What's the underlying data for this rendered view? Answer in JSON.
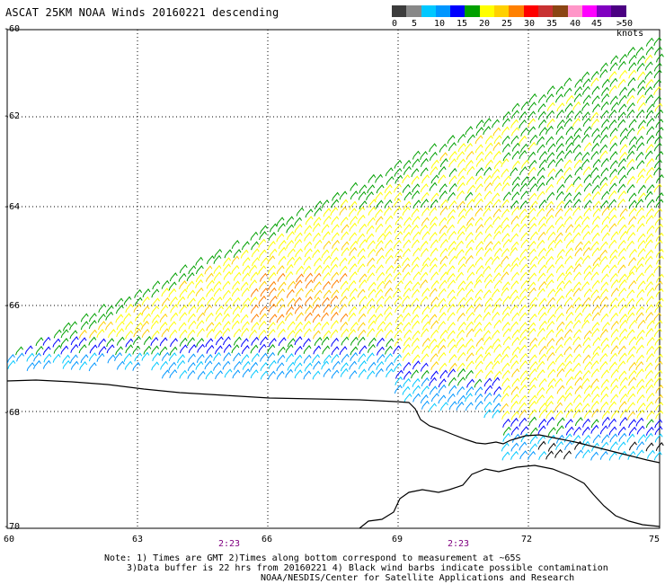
{
  "title": "ASCAT 25KM NOAA Winds 20160221 descending",
  "legend": {
    "colors": [
      "#3c3c3c",
      "#888888",
      "#00c8ff",
      "#0096ff",
      "#0000ff",
      "#00a000",
      "#ffff00",
      "#ffd000",
      "#ff8000",
      "#ff0000",
      "#c83232",
      "#8b4513",
      "#ff96c8",
      "#ff00ff",
      "#8000c0",
      "#4b0082"
    ],
    "labels": [
      "0",
      "5",
      "10",
      "15",
      "20",
      "25",
      "30",
      "35",
      "40",
      "45",
      ">50 knots"
    ]
  },
  "axes": {
    "lat_labels": [
      "-60",
      "-62",
      "-64",
      "-66",
      "-68",
      "-70"
    ],
    "lon_labels": [
      "60",
      "63",
      "66",
      "69",
      "72",
      "75"
    ]
  },
  "times": [
    "2:23",
    "2:23"
  ],
  "notes": {
    "line1": "Note: 1) Times are GMT 2)Times along bottom correspond to measurement at ~65S",
    "line2": "3)Data buffer is 22 hrs from 20160221 4) Black wind barbs indicate possible contamination",
    "line3": "NOAA/NESDIS/Center for Satellite Applications and Research"
  }
}
